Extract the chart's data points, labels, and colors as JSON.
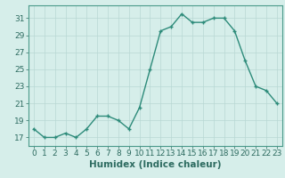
{
  "x": [
    0,
    1,
    2,
    3,
    4,
    5,
    6,
    7,
    8,
    9,
    10,
    11,
    12,
    13,
    14,
    15,
    16,
    17,
    18,
    19,
    20,
    21,
    22,
    23
  ],
  "y": [
    18,
    17,
    17,
    17.5,
    17,
    18,
    19.5,
    19.5,
    19,
    18,
    20.5,
    25,
    29.5,
    30,
    31.5,
    30.5,
    30.5,
    31,
    31,
    29.5,
    26,
    23,
    22.5,
    21
  ],
  "line_color": "#2d8b7a",
  "marker": "+",
  "bg_color": "#d6eeea",
  "grid_color": "#b8d8d4",
  "xlabel": "Humidex (Indice chaleur)",
  "ylim": [
    16,
    32.5
  ],
  "xlim": [
    -0.5,
    23.5
  ],
  "yticks": [
    17,
    19,
    21,
    23,
    25,
    27,
    29,
    31
  ],
  "xticks": [
    0,
    1,
    2,
    3,
    4,
    5,
    6,
    7,
    8,
    9,
    10,
    11,
    12,
    13,
    14,
    15,
    16,
    17,
    18,
    19,
    20,
    21,
    22,
    23
  ],
  "tick_color": "#2d6b60",
  "spine_color": "#4a9a8a",
  "font_size": 6.5,
  "xlabel_fontsize": 7.5,
  "linewidth": 1.0,
  "markersize": 3.5,
  "markeredgewidth": 1.0
}
